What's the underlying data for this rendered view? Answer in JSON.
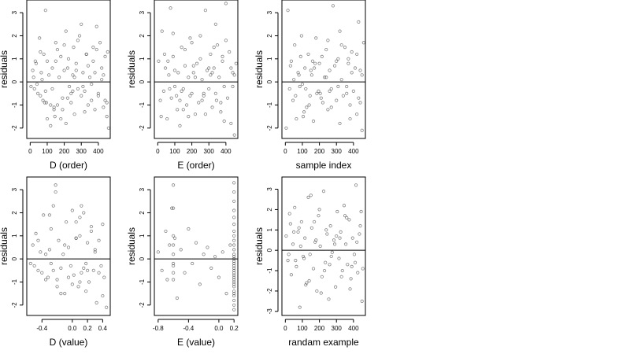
{
  "chart_data": [
    {
      "type": "scatter",
      "xlabel": "D (order)",
      "ylabel": "residuals",
      "xlim": [
        -20,
        470
      ],
      "ylim": [
        -2.45,
        3.55
      ],
      "xticks": [
        0,
        100,
        200,
        300,
        400
      ],
      "xtick_labels": [
        "0",
        "100",
        "200",
        "300",
        "400"
      ],
      "yticks": [
        -2,
        -1,
        0,
        1,
        2,
        3
      ],
      "ytick_labels": [
        "-2",
        "-1",
        "0",
        "1",
        "2",
        "3"
      ],
      "hline": 0,
      "x": [
        5,
        15,
        25,
        35,
        45,
        55,
        60,
        70,
        75,
        80,
        85,
        90,
        95,
        100,
        110,
        120,
        130,
        140,
        145,
        150,
        160,
        170,
        180,
        190,
        200,
        210,
        220,
        225,
        230,
        240,
        250,
        255,
        260,
        270,
        280,
        290,
        300,
        310,
        320,
        330,
        340,
        350,
        360,
        370,
        380,
        390,
        400,
        410,
        420,
        430,
        440,
        450,
        455,
        460,
        20,
        40,
        65,
        100,
        130,
        160,
        190,
        220,
        250,
        280,
        310,
        340,
        370,
        400,
        430,
        120,
        180,
        240,
        300,
        360,
        420,
        30,
        90,
        150,
        210,
        270,
        330,
        390,
        450,
        200,
        260,
        320,
        380,
        440,
        60,
        140
      ],
      "y": [
        -0.2,
        0.5,
        -0.3,
        0.8,
        -0.5,
        1.9,
        -0.6,
        0.1,
        -0.8,
        1.2,
        -0.9,
        3.1,
        -0.9,
        -1.6,
        0.3,
        -1.0,
        0.6,
        -1.1,
        -1.5,
        0.9,
        -1.0,
        0.2,
        -1.6,
        -1.2,
        0.5,
        2.2,
        -0.7,
        1.0,
        -0.2,
        -0.5,
        0.3,
        1.5,
        -1.4,
        0.8,
        -0.3,
        2.0,
        -0.6,
        0.4,
        -0.4,
        1.2,
        -1.0,
        0.2,
        -0.8,
        0.9,
        -1.2,
        1.4,
        -0.5,
        1.7,
        0.1,
        -1.1,
        1.1,
        -0.9,
        1.3,
        -2.0,
        0.2,
        -0.1,
        0.4,
        0.9,
        -0.3,
        1.4,
        -0.7,
        0.6,
        -0.4,
        1.8,
        -0.2,
        0.7,
        1.5,
        -0.6,
        0.3,
        -1.9,
        1.1,
        -0.9,
        2.5,
        -0.1,
        0.6,
        0.9,
        -0.4,
        1.7,
        -1.8,
        0.5,
        1.2,
        2.4,
        -1.5,
        1.6,
        0.2,
        -1.3,
        0.4,
        -0.8,
        1.3,
        -1.2
      ]
    },
    {
      "type": "scatter",
      "xlabel": "E (order)",
      "ylabel": "residuals",
      "xlim": [
        -20,
        470
      ],
      "ylim": [
        -2.45,
        3.55
      ],
      "xticks": [
        0,
        100,
        200,
        300,
        400
      ],
      "xtick_labels": [
        "0",
        "100",
        "200",
        "300",
        "400"
      ],
      "yticks": [
        -2,
        -1,
        0,
        1,
        2,
        3
      ],
      "ytick_labels": [
        "-2",
        "-1",
        "0",
        "1",
        "2",
        "3"
      ],
      "hline": 0,
      "x": [
        5,
        15,
        25,
        35,
        45,
        55,
        65,
        75,
        80,
        90,
        100,
        110,
        115,
        120,
        130,
        140,
        150,
        160,
        170,
        180,
        190,
        200,
        210,
        220,
        230,
        240,
        250,
        260,
        270,
        280,
        290,
        300,
        310,
        320,
        330,
        340,
        345,
        350,
        360,
        370,
        380,
        390,
        400,
        410,
        420,
        430,
        440,
        450,
        460,
        40,
        70,
        100,
        130,
        160,
        190,
        220,
        250,
        280,
        310,
        340,
        370,
        400,
        430,
        20,
        60,
        140,
        200,
        260,
        320,
        380,
        440,
        90,
        150,
        210,
        270,
        330,
        390,
        450,
        180,
        300
      ],
      "y": [
        0.9,
        -0.8,
        2.2,
        -0.4,
        0.6,
        -1.6,
        0.3,
        3.2,
        -0.7,
        1.1,
        -0.2,
        -0.6,
        -1.2,
        0.4,
        -0.8,
        1.5,
        -0.3,
        0.7,
        -1.0,
        0.2,
        1.9,
        -0.5,
        0.4,
        -1.4,
        0.8,
        -0.9,
        2.0,
        0.1,
        -0.6,
        3.1,
        0.5,
        -0.3,
        1.2,
        -1.1,
        0.6,
        -0.5,
        -0.8,
        1.6,
        0.2,
        -1.3,
        0.9,
        -0.2,
        3.4,
        -0.7,
        1.3,
        -1.8,
        0.4,
        -2.3,
        0.8,
        1.2,
        -0.3,
        0.5,
        -1.9,
        1.4,
        -0.6,
        0.2,
        1.0,
        -1.4,
        0.3,
        2.5,
        -0.9,
        1.8,
        0.6,
        -1.5,
        0.9,
        -0.4,
        1.7,
        -0.8,
        0.4,
        1.1,
        -0.2,
        2.1,
        -1.2,
        0.7,
        -0.5,
        1.5,
        -1.7,
        0.3,
        -1.5,
        0.6
      ]
    },
    {
      "type": "scatter",
      "xlabel": "sample index",
      "ylabel": "residuals",
      "xlim": [
        -20,
        470
      ],
      "ylim": [
        -2.45,
        3.55
      ],
      "xticks": [
        0,
        100,
        200,
        300,
        400
      ],
      "xtick_labels": [
        "0",
        "100",
        "200",
        "300",
        "400"
      ],
      "yticks": [
        -2,
        -1,
        0,
        1,
        2,
        3
      ],
      "ytick_labels": [
        "-2",
        "-1",
        "0",
        "1",
        "2",
        "3"
      ],
      "hline": 0,
      "x": [
        5,
        15,
        25,
        35,
        45,
        55,
        65,
        75,
        85,
        95,
        105,
        115,
        125,
        135,
        145,
        155,
        165,
        175,
        185,
        195,
        205,
        215,
        220,
        230,
        240,
        250,
        260,
        270,
        280,
        290,
        300,
        310,
        320,
        330,
        340,
        350,
        360,
        370,
        380,
        390,
        400,
        410,
        420,
        430,
        440,
        450,
        460,
        30,
        60,
        90,
        120,
        150,
        180,
        210,
        240,
        270,
        300,
        330,
        360,
        390,
        420,
        450,
        50,
        110,
        170,
        250,
        310,
        370,
        430,
        80,
        140,
        200,
        260,
        320,
        380,
        440,
        100,
        160
      ],
      "y": [
        -2.0,
        3.1,
        -0.3,
        0.9,
        -0.8,
        1.6,
        -1.6,
        0.4,
        -0.2,
        2.0,
        -1.5,
        0.6,
        -1.1,
        1.2,
        -0.6,
        0.3,
        -1.7,
        0.8,
        -0.5,
        -0.4,
        -0.5,
        1.1,
        -0.9,
        0.2,
        1.4,
        -1.2,
        0.5,
        -0.3,
        3.3,
        0.7,
        -0.8,
        1.0,
        -1.8,
        0.1,
        -0.6,
        1.5,
        -0.2,
        0.8,
        -1.0,
        1.3,
        -0.4,
        0.6,
        -1.4,
        2.6,
        -0.9,
        0.3,
        1.7,
        0.7,
        -0.6,
        1.1,
        -0.3,
        0.5,
        1.9,
        -0.7,
        0.2,
        -1.1,
        0.9,
        1.6,
        -0.5,
        0.4,
        1.2,
        -2.1,
        0.1,
        -1.3,
        0.6,
        1.8,
        -0.2,
        1.0,
        -0.7,
        0.3,
        -1.0,
        0.8,
        -0.4,
        2.2,
        -1.6,
        0.5,
        -0.1,
        0.9
      ]
    },
    {
      "type": "scatter",
      "xlabel": "D (value)",
      "ylabel": "residuals",
      "xlim": [
        -0.6,
        0.5
      ],
      "ylim": [
        -2.45,
        3.55
      ],
      "xticks": [
        -0.4,
        0.0,
        0.2,
        0.4
      ],
      "xtick_labels": [
        "-0.4",
        "0.0",
        "0.2",
        "0.4"
      ],
      "yticks": [
        -2,
        -1,
        0,
        1,
        2,
        3
      ],
      "ytick_labels": [
        "-2",
        "-1",
        "0",
        "1",
        "2",
        "3"
      ],
      "hline": 0,
      "x": [
        -0.55,
        -0.52,
        -0.5,
        -0.48,
        -0.45,
        -0.42,
        -0.4,
        -0.38,
        -0.35,
        -0.32,
        -0.3,
        -0.28,
        -0.25,
        -0.22,
        -0.2,
        -0.18,
        -0.15,
        -0.12,
        -0.1,
        -0.08,
        -0.05,
        -0.02,
        0.0,
        0.02,
        0.05,
        0.08,
        0.1,
        0.12,
        0.15,
        0.18,
        0.2,
        0.22,
        0.25,
        0.28,
        0.3,
        0.32,
        0.35,
        0.38,
        0.4,
        0.42,
        0.45,
        -0.3,
        -0.2,
        -0.1,
        0.0,
        0.1,
        0.2,
        0.3,
        -0.25,
        -0.15,
        -0.05,
        0.05,
        0.15,
        0.25,
        0.35,
        -0.35,
        -0.45,
        0.4,
        -0.28,
        0.1,
        0.12,
        0.18,
        -0.22,
        0.05
      ],
      "y": [
        -0.2,
        0.6,
        -0.3,
        1.1,
        -0.5,
        0.3,
        -0.6,
        1.9,
        -0.9,
        -0.8,
        0.4,
        1.3,
        -0.5,
        3.2,
        -1.2,
        0.8,
        -0.4,
        0.2,
        -1.5,
        1.6,
        0.5,
        -0.3,
        2.1,
        -0.7,
        0.9,
        -1.2,
        1.0,
        -0.6,
        2.0,
        -0.2,
        0.7,
        -1.0,
        1.4,
        -0.5,
        0.3,
        -1.9,
        0.8,
        -0.3,
        1.5,
        -0.8,
        -2.1,
        1.9,
        -0.9,
        0.6,
        -1.1,
        1.8,
        -0.5,
        0.4,
        2.3,
        -1.5,
        -0.8,
        0.9,
        -0.4,
        1.2,
        -0.6,
        0.2,
        0.8,
        -1.6,
        -0.2,
        -1.0,
        2.3,
        -1.4,
        2.9,
        1.6
      ]
    },
    {
      "type": "scatter",
      "xlabel": "E (value)",
      "ylabel": "residuals",
      "xlim": [
        -0.85,
        0.25
      ],
      "ylim": [
        -2.45,
        3.55
      ],
      "xticks": [
        -0.8,
        -0.4,
        0.0,
        0.2
      ],
      "xtick_labels": [
        "-0.8",
        "-0.4",
        "0.0",
        "0.2"
      ],
      "yticks": [
        -2,
        -1,
        0,
        1,
        2,
        3
      ],
      "ytick_labels": [
        "-2",
        "-1",
        "0",
        "1",
        "2",
        "3"
      ],
      "hline": 0,
      "x": [
        -0.8,
        -0.75,
        -0.7,
        -0.68,
        -0.65,
        -0.62,
        -0.6,
        -0.58,
        -0.55,
        -0.5,
        -0.45,
        -0.4,
        -0.35,
        -0.3,
        -0.25,
        -0.2,
        -0.15,
        -0.1,
        -0.05,
        0.0,
        0.05,
        0.1,
        0.15,
        -0.6,
        -0.6,
        -0.6,
        -0.6,
        -0.6,
        -0.6,
        -0.6,
        -0.6,
        0.2,
        0.2,
        0.2,
        0.2,
        0.2,
        0.2,
        0.2,
        0.2,
        0.2,
        0.2,
        0.2,
        0.2,
        0.2,
        0.2,
        0.2,
        0.2,
        0.2,
        0.2,
        0.2,
        0.2,
        0.2,
        0.2,
        0.2,
        0.2,
        0.2,
        0.2,
        0.2,
        0.2,
        0.2,
        0.2,
        0.2,
        0.2
      ],
      "y": [
        0.3,
        -0.5,
        1.2,
        -0.9,
        0.6,
        2.2,
        -0.3,
        0.9,
        -1.7,
        0.4,
        -0.6,
        1.3,
        -0.2,
        0.7,
        -1.1,
        0.2,
        0.5,
        -0.4,
        0.1,
        -0.8,
        0.3,
        -1.5,
        0.6,
        3.2,
        2.2,
        1.0,
        0.6,
        0.2,
        -0.2,
        -0.6,
        -0.9,
        3.3,
        2.9,
        2.5,
        2.1,
        1.8,
        1.5,
        1.2,
        1.0,
        0.8,
        0.6,
        0.4,
        0.2,
        0.1,
        0.0,
        -0.1,
        -0.2,
        -0.3,
        -0.4,
        -0.5,
        -0.6,
        -0.7,
        -0.8,
        -0.9,
        -1.0,
        -1.1,
        -1.2,
        -1.4,
        -1.6,
        -1.8,
        -2.0,
        -2.2,
        -1.5
      ]
    },
    {
      "type": "scatter",
      "xlabel": "randam example",
      "ylabel": "residuals",
      "xlim": [
        -20,
        470
      ],
      "ylim": [
        -3.2,
        3.6
      ],
      "xticks": [
        0,
        100,
        200,
        300,
        400
      ],
      "xtick_labels": [
        "0",
        "100",
        "200",
        "300",
        "400"
      ],
      "yticks": [
        -3,
        -2,
        -1,
        0,
        1,
        2,
        3
      ],
      "ytick_labels": [
        "-3",
        "-2",
        "-1",
        "0",
        "1",
        "2",
        "3"
      ],
      "hline": 0,
      "x": [
        5,
        15,
        25,
        35,
        45,
        55,
        65,
        75,
        85,
        95,
        105,
        115,
        125,
        135,
        145,
        155,
        165,
        175,
        185,
        195,
        205,
        215,
        225,
        235,
        245,
        255,
        265,
        275,
        285,
        295,
        305,
        315,
        325,
        335,
        345,
        355,
        365,
        375,
        385,
        395,
        405,
        415,
        425,
        435,
        445,
        455,
        30,
        60,
        90,
        120,
        150,
        180,
        210,
        240,
        270,
        300,
        330,
        360,
        390,
        420,
        450,
        50,
        110,
        170,
        230,
        290,
        350,
        410,
        20,
        80,
        140,
        200,
        260,
        320,
        380,
        440
      ],
      "y": [
        0.7,
        -0.5,
        1.8,
        -1.2,
        0.3,
        2.1,
        -0.8,
        0.9,
        -2.8,
        1.4,
        -0.3,
        0.6,
        -1.6,
        2.6,
        -0.2,
        1.1,
        -0.9,
        0.4,
        -2.0,
        1.7,
        0.2,
        -1.3,
        2.9,
        -0.6,
        0.8,
        -2.4,
        1.2,
        -0.1,
        0.5,
        -1.8,
        1.9,
        -0.4,
        0.9,
        -1.0,
        2.2,
        0.3,
        -0.7,
        1.5,
        -1.4,
        0.6,
        -0.2,
        3.2,
        -1.1,
        0.8,
        1.9,
        -0.9,
        1.3,
        -0.5,
        0.2,
        -1.7,
        2.7,
        0.5,
        -2.1,
        1.0,
        -0.3,
        0.7,
        -1.3,
        1.6,
        -0.8,
        0.4,
        -2.5,
        0.9,
        -0.4,
        1.4,
        -1.0,
        0.3,
        1.7,
        -0.6,
        -0.2,
        1.1,
        -1.5,
        2.0,
        -0.7,
        0.6,
        -1.9,
        1.2
      ]
    }
  ]
}
